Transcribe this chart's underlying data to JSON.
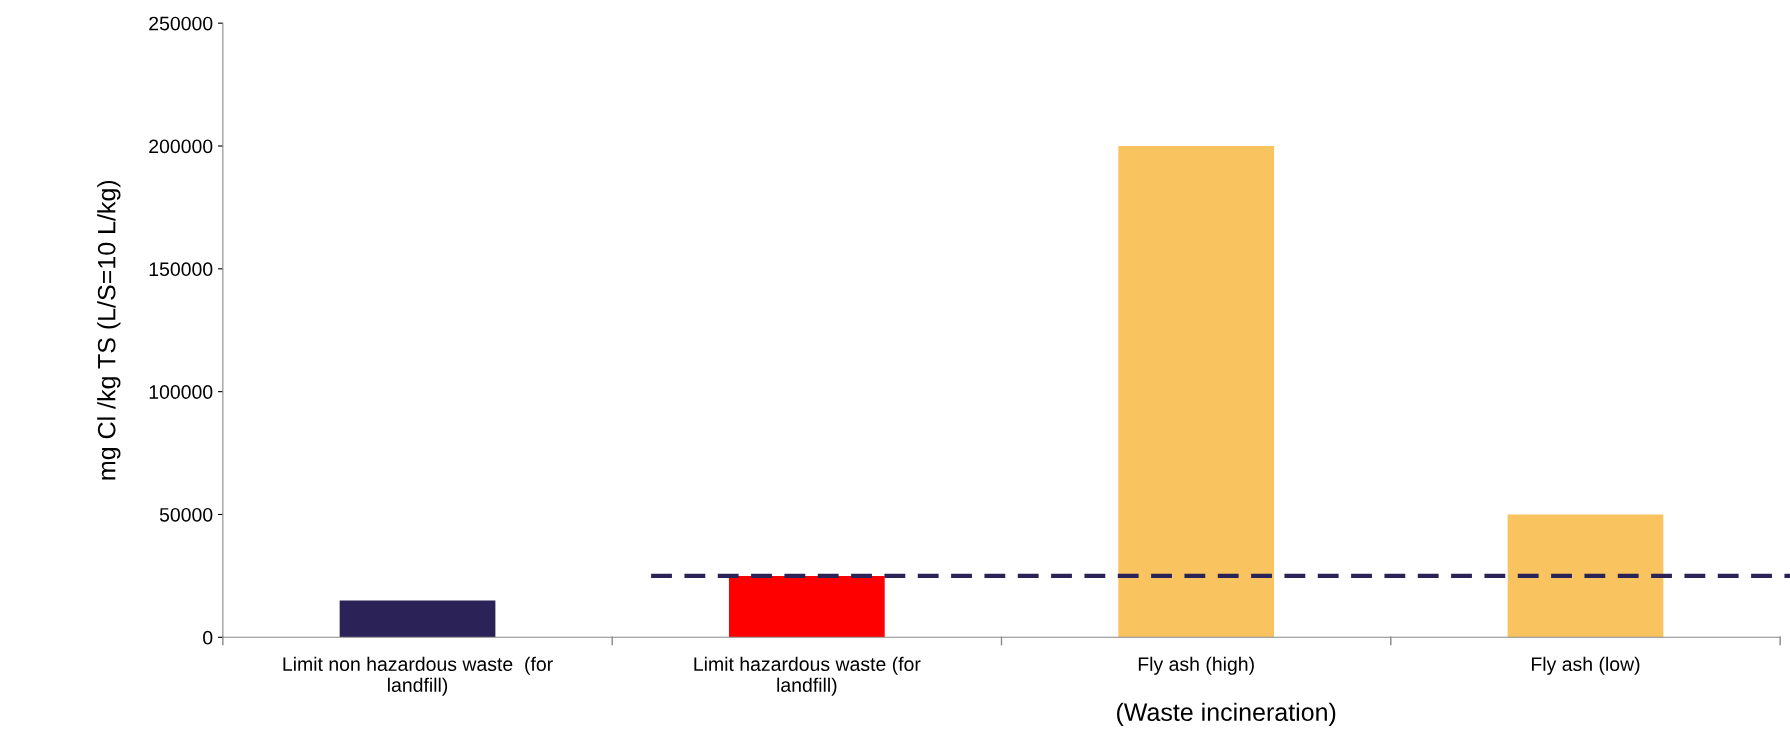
{
  "chart_data": {
    "type": "bar",
    "ylabel": "mg Cl /kg TS (L/S=10 L/kg)",
    "categories": [
      "Limit non hazardous waste  (for\nlandfill)",
      "Limit hazardous waste (for\nlandfill)",
      "Fly ash (high)",
      "Fly ash (low)"
    ],
    "values": [
      15000,
      25000,
      200000,
      50000
    ],
    "colors": [
      "#2b2358",
      "#ff0000",
      "#f9c460",
      "#f9c460"
    ],
    "ylim": [
      0,
      250000
    ],
    "yticks": [
      0,
      50000,
      100000,
      150000,
      200000,
      250000
    ],
    "grid": false,
    "legend": false,
    "ref_lines": [
      {
        "axis": "y",
        "value": 25000,
        "color": "#2b2358",
        "line_style": "dashed"
      }
    ],
    "annotations": [
      "(Waste incineration)"
    ]
  }
}
